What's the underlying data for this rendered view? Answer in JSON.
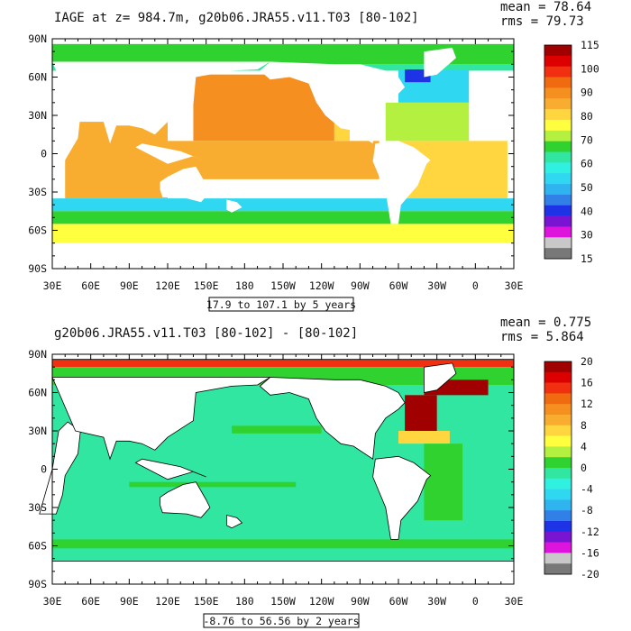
{
  "chart_data": [
    {
      "type": "heatmap",
      "title": "IAGE at z= 984.7m, g20b06.JRA55.v11.T03 [80-102]",
      "stats": {
        "mean": "mean = 78.64",
        "rms": "rms = 79.73"
      },
      "range_note": "17.9 to 107.1 by 5 years",
      "x_ticks": [
        "30E",
        "60E",
        "90E",
        "120E",
        "150E",
        "180",
        "150W",
        "120W",
        "90W",
        "60W",
        "30W",
        "0",
        "30E"
      ],
      "y_ticks": [
        "90N",
        "60N",
        "30N",
        "0",
        "30S",
        "60S",
        "90S"
      ],
      "xlim_lon": [
        30,
        390
      ],
      "ylim_lat": [
        -90,
        90
      ],
      "colorbar": {
        "labels": [
          "115",
          "100",
          "90",
          "80",
          "70",
          "60",
          "50",
          "40",
          "30",
          "15"
        ],
        "colors": [
          "#a00000",
          "#dd0000",
          "#f03010",
          "#f06a10",
          "#f59020",
          "#f9ad30",
          "#ffd640",
          "#ffff40",
          "#b4f040",
          "#30d230",
          "#30e6a0",
          "#30f0e0",
          "#30d7f0",
          "#30b4f0",
          "#3080e8",
          "#1e32e6",
          "#7814d2",
          "#dc14dc",
          "#c8c8c8",
          "#787878"
        ]
      },
      "fields": {
        "north_polar": 68,
        "north_pacific": 94,
        "equatorial_pacific": 88,
        "indian_ocean": 88,
        "south_atlantic": 84,
        "north_atlantic_subtropical": 74,
        "north_atlantic_subpolar": 52,
        "labrador_sea": 40,
        "southern_ocean_band_1": 52,
        "southern_ocean_band_2": 70,
        "southern_ocean_band_3": 78,
        "antarctic_shelf": 78
      }
    },
    {
      "type": "heatmap",
      "title": "g20b06.JRA55.v11.T03 [80-102] -  [80-102]",
      "stats": {
        "mean": "mean = 0.775",
        "rms": "rms = 5.864"
      },
      "range_note": "-8.76 to 56.56 by 2 years",
      "x_ticks": [
        "30E",
        "60E",
        "90E",
        "120E",
        "150E",
        "180",
        "150W",
        "120W",
        "90W",
        "60W",
        "30W",
        "0",
        "30E"
      ],
      "y_ticks": [
        "90N",
        "60N",
        "30N",
        "0",
        "30S",
        "60S",
        "90S"
      ],
      "xlim_lon": [
        30,
        390
      ],
      "ylim_lat": [
        -90,
        90
      ],
      "colorbar": {
        "labels": [
          "20",
          "16",
          "12",
          "8",
          "4",
          "0",
          "-4",
          "-8",
          "-12",
          "-16",
          "-20"
        ],
        "colors": [
          "#a00000",
          "#dd0000",
          "#f03010",
          "#f06a10",
          "#f59020",
          "#f9ad30",
          "#ffd640",
          "#ffff40",
          "#b4f040",
          "#30d230",
          "#30e6a0",
          "#30f0e0",
          "#30d7f0",
          "#30b4f0",
          "#3080e8",
          "#1e32e6",
          "#7814d2",
          "#dc14dc",
          "#c8c8c8",
          "#787878"
        ]
      },
      "fields": {
        "background": 0,
        "nordic_labrador": 20,
        "arctic_coast": 16,
        "north_atlantic_front": 8,
        "south_atlantic_tongue": 2,
        "southern_band": 2,
        "pacific_patches": 2
      }
    }
  ]
}
